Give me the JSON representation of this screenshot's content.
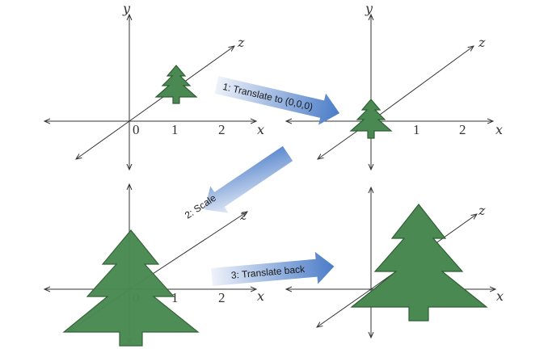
{
  "axes": {
    "x": "x",
    "y": "y",
    "z": "z"
  },
  "ticks": {
    "origin": "0",
    "one": "1",
    "two": "2"
  },
  "steps": [
    {
      "label": "1: Translate to (0,0,0)"
    },
    {
      "label": "2: Scale"
    },
    {
      "label": "3: Translate back"
    }
  ],
  "colors": {
    "tree": "#4a8a52",
    "arrow_start": "#e8eef8",
    "arrow_end": "#4f7fc6"
  }
}
